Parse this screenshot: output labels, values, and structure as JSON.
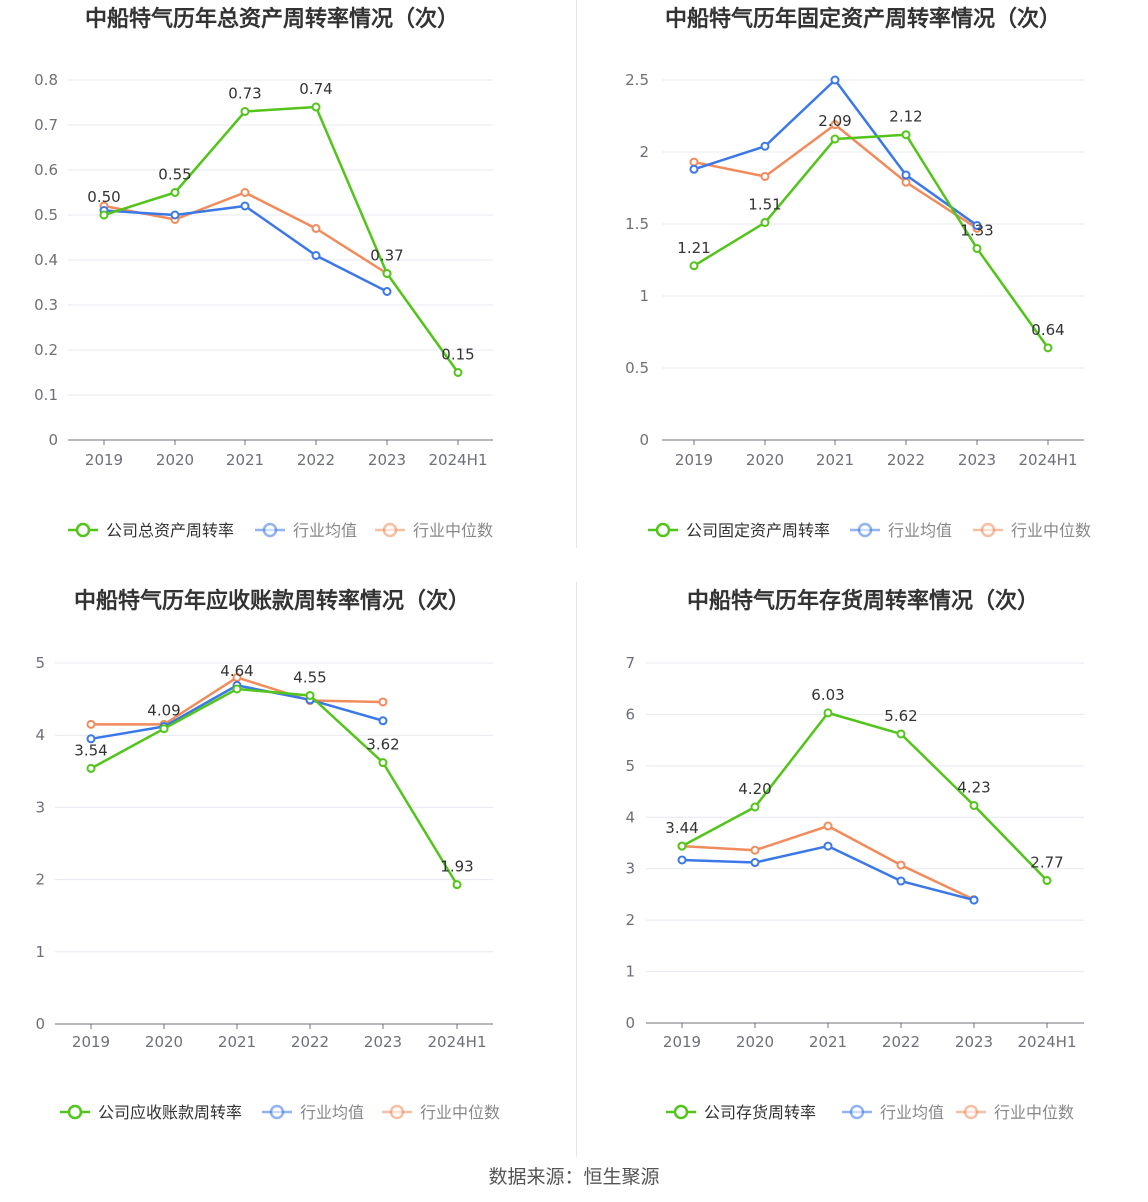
{
  "source": "数据来源：恒生聚源",
  "charts": [
    {
      "type": "line",
      "title": "中船特气历年总资产周转率情况（次）",
      "categories": [
        "2019",
        "2020",
        "2021",
        "2022",
        "2023",
        "2024H1"
      ],
      "ylim": [
        0,
        0.8
      ],
      "yticks": [
        0,
        0.1,
        0.2,
        0.3,
        0.4,
        0.5,
        0.6,
        0.7,
        0.8
      ],
      "ytick_labels": [
        "0",
        "0.1",
        "0.2",
        "0.3",
        "0.4",
        "0.5",
        "0.6",
        "0.7",
        "0.8"
      ],
      "series": [
        {
          "name": "公司总资产周转率",
          "color": "#52c41a",
          "values": [
            0.5,
            0.55,
            0.73,
            0.74,
            0.37,
            0.15
          ],
          "labels": [
            "0.50",
            "0.55",
            "0.73",
            "0.74",
            "0.37",
            "0.15"
          ]
        },
        {
          "name": "行业均值",
          "color": "#3b78e7",
          "values": [
            0.51,
            0.5,
            0.52,
            0.41,
            0.33,
            null
          ]
        },
        {
          "name": "行业中位数",
          "color": "#f28b5b",
          "values": [
            0.52,
            0.49,
            0.55,
            0.47,
            0.37,
            null
          ]
        }
      ]
    },
    {
      "type": "line",
      "title": "中船特气历年固定资产周转率情况（次）",
      "categories": [
        "2019",
        "2020",
        "2021",
        "2022",
        "2023",
        "2024H1"
      ],
      "ylim": [
        0,
        2.5
      ],
      "yticks": [
        0,
        0.5,
        1,
        1.5,
        2,
        2.5
      ],
      "ytick_labels": [
        "0",
        "0.5",
        "1",
        "1.5",
        "2",
        "2.5"
      ],
      "series": [
        {
          "name": "公司固定资产周转率",
          "color": "#52c41a",
          "values": [
            1.21,
            1.51,
            2.09,
            2.12,
            1.33,
            0.64
          ],
          "labels": [
            "1.21",
            "1.51",
            "2.09",
            "2.12",
            "1.33",
            "0.64"
          ]
        },
        {
          "name": "行业均值",
          "color": "#3b78e7",
          "values": [
            1.88,
            2.04,
            2.5,
            1.84,
            1.49,
            null
          ]
        },
        {
          "name": "行业中位数",
          "color": "#f28b5b",
          "values": [
            1.93,
            1.83,
            2.19,
            1.79,
            1.47,
            null
          ]
        }
      ]
    },
    {
      "type": "line",
      "title": "中船特气历年应收账款周转率情况（次）",
      "categories": [
        "2019",
        "2020",
        "2021",
        "2022",
        "2023",
        "2024H1"
      ],
      "ylim": [
        0,
        5
      ],
      "yticks": [
        0,
        1,
        2,
        3,
        4,
        5
      ],
      "ytick_labels": [
        "0",
        "1",
        "2",
        "3",
        "4",
        "5"
      ],
      "series": [
        {
          "name": "公司应收账款周转率",
          "color": "#52c41a",
          "values": [
            3.54,
            4.09,
            4.64,
            4.55,
            3.62,
            1.93
          ],
          "labels": [
            "3.54",
            "4.09",
            "4.64",
            "4.55",
            "3.62",
            "1.93"
          ]
        },
        {
          "name": "行业均值",
          "color": "#3b78e7",
          "values": [
            3.95,
            4.12,
            4.69,
            4.49,
            4.2,
            null
          ]
        },
        {
          "name": "行业中位数",
          "color": "#f28b5b",
          "values": [
            4.15,
            4.15,
            4.8,
            4.48,
            4.46,
            null
          ]
        }
      ]
    },
    {
      "type": "line",
      "title": "中船特气历年存货周转率情况（次）",
      "categories": [
        "2019",
        "2020",
        "2021",
        "2022",
        "2023",
        "2024H1"
      ],
      "ylim": [
        0,
        7
      ],
      "yticks": [
        0,
        1,
        2,
        3,
        4,
        5,
        6,
        7
      ],
      "ytick_labels": [
        "0",
        "1",
        "2",
        "3",
        "4",
        "5",
        "6",
        "7"
      ],
      "series": [
        {
          "name": "公司存货周转率",
          "color": "#52c41a",
          "values": [
            3.44,
            4.2,
            6.03,
            5.62,
            4.23,
            2.77
          ],
          "labels": [
            "3.44",
            "4.20",
            "6.03",
            "5.62",
            "4.23",
            "2.77"
          ]
        },
        {
          "name": "行业均值",
          "color": "#3b78e7",
          "values": [
            3.17,
            3.12,
            3.44,
            2.76,
            2.39,
            null
          ]
        },
        {
          "name": "行业中位数",
          "color": "#f28b5b",
          "values": [
            3.44,
            3.36,
            3.83,
            3.07,
            2.4,
            null
          ]
        }
      ]
    }
  ]
}
